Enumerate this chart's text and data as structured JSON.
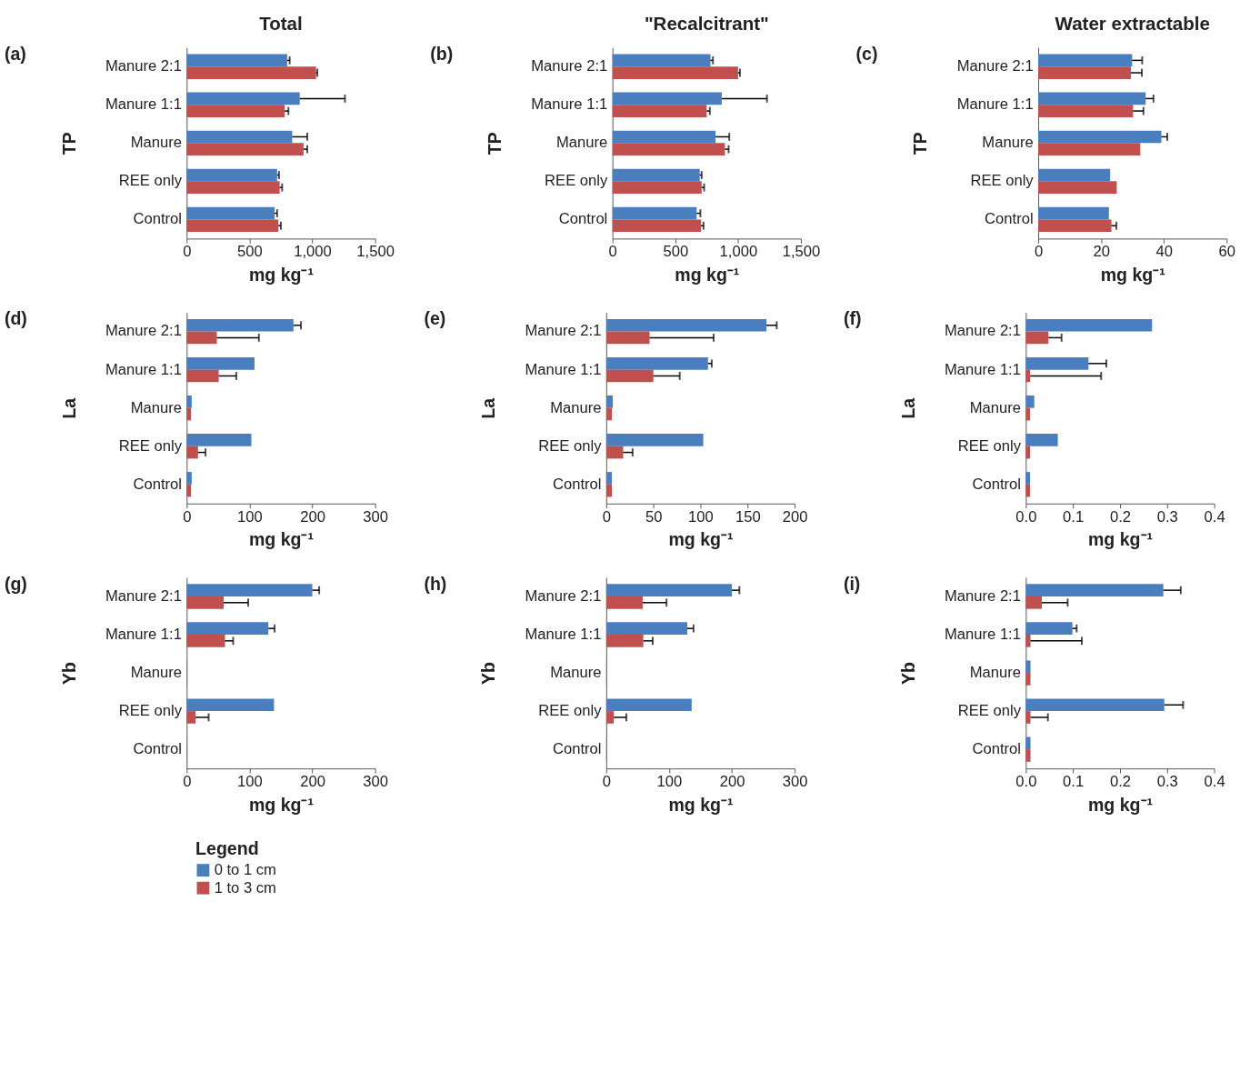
{
  "chart_data": [
    {
      "type": "bar",
      "orientation": "horizontal",
      "title": "Total",
      "ylabel": "TP",
      "xlabel": "mg kg⁻¹",
      "annotations": [
        "(a)"
      ],
      "categories": [
        "Manure 2:1",
        "Manure 1:1",
        "Manure",
        "REE only",
        "Control"
      ],
      "xlim": [
        0,
        1500
      ],
      "xticks": [
        0,
        500,
        {
          "value": 1000,
          "label": "1,000"
        },
        {
          "value": 1500,
          "label": "1,500"
        }
      ],
      "grid": false,
      "legend": "bottom",
      "legend_title": "Legend",
      "series": [
        {
          "name": "0 to 1 cm",
          "color": "#4a7ebf",
          "values": [
            800,
            900,
            840,
            720,
            700
          ],
          "errors": [
            [
              800,
              820
            ],
            [
              900,
              1260
            ],
            [
              840,
              960
            ],
            [
              720,
              735
            ],
            [
              700,
              720
            ]
          ]
        },
        {
          "name": "1 to 3 cm",
          "color": "#c0504d",
          "values": [
            1030,
            780,
            930,
            740,
            730
          ],
          "errors": [
            [
              1030,
              1040
            ],
            [
              780,
              810
            ],
            [
              930,
              960
            ],
            [
              740,
              760
            ],
            [
              730,
              750
            ]
          ]
        }
      ]
    },
    {
      "type": "bar",
      "orientation": "horizontal",
      "title": "\"Recalcitrant\"",
      "ylabel": "TP",
      "xlabel": "mg kg⁻¹",
      "annotations": [
        "(b)"
      ],
      "categories": [
        "Manure 2:1",
        "Manure 1:1",
        "Manure",
        "REE only",
        "Control"
      ],
      "xlim": [
        0,
        1500
      ],
      "xticks": [
        0,
        500,
        {
          "value": 1000,
          "label": "1,000"
        },
        {
          "value": 1500,
          "label": "1,500"
        }
      ],
      "grid": false,
      "series": [
        {
          "color": "#4a7ebf",
          "values": [
            780,
            870,
            820,
            695,
            670
          ],
          "errors": [
            [
              780,
              800
            ],
            [
              870,
              1230
            ],
            [
              820,
              930
            ],
            [
              695,
              710
            ],
            [
              670,
              700
            ]
          ]
        },
        {
          "color": "#c0504d",
          "values": [
            1000,
            750,
            895,
            710,
            705
          ],
          "errors": [
            [
              1000,
              1015
            ],
            [
              750,
              775
            ],
            [
              895,
              925
            ],
            [
              710,
              730
            ],
            [
              705,
              725
            ]
          ]
        }
      ]
    },
    {
      "type": "bar",
      "orientation": "horizontal",
      "title": "Water extractable",
      "ylabel": "TP",
      "xlabel": "mg kg⁻¹",
      "annotations": [
        "(c)"
      ],
      "categories": [
        "Manure 2:1",
        "Manure 1:1",
        "Manure",
        "REE only",
        "Control"
      ],
      "xlim": [
        0,
        60
      ],
      "xticks": [
        0,
        20,
        40,
        60
      ],
      "grid": false,
      "series": [
        {
          "color": "#4a7ebf",
          "values": [
            29.9,
            34.2,
            39.2,
            22.9,
            22.5
          ],
          "errors": [
            [
              29.9,
              33.1
            ],
            [
              34.2,
              36.7
            ],
            [
              39.2,
              41.1
            ],
            null,
            null
          ]
        },
        {
          "color": "#c0504d",
          "values": [
            29.5,
            30.2,
            32.5,
            25.0,
            23.3
          ],
          "errors": [
            [
              29.5,
              33
            ],
            [
              30.2,
              33.5
            ],
            null,
            null,
            [
              23.3,
              24.9
            ]
          ]
        }
      ]
    },
    {
      "type": "bar",
      "orientation": "horizontal",
      "ylabel": "La",
      "xlabel": "mg kg⁻¹",
      "annotations": [
        "(d)"
      ],
      "categories": [
        "Manure 2:1",
        "Manure 1:1",
        "Manure",
        "REE only",
        "Control"
      ],
      "xlim": [
        0,
        300
      ],
      "xticks": [
        0,
        100,
        200,
        300
      ],
      "grid": false,
      "series": [
        {
          "color": "#4a7ebf",
          "values": [
            170,
            108,
            8,
            103,
            8
          ],
          "errors": [
            [
              170,
              182
            ],
            null,
            null,
            null,
            null
          ]
        },
        {
          "color": "#c0504d",
          "values": [
            48,
            51,
            7,
            18,
            7
          ],
          "errors": [
            [
              48,
              115
            ],
            [
              51,
              79
            ],
            null,
            [
              18,
              30
            ],
            null
          ]
        }
      ]
    },
    {
      "type": "bar",
      "orientation": "horizontal",
      "ylabel": "La",
      "xlabel": "mg kg⁻¹",
      "annotations": [
        "(e)"
      ],
      "categories": [
        "Manure 2:1",
        "Manure 1:1",
        "Manure",
        "REE only",
        "Control"
      ],
      "xlim": [
        0,
        200
      ],
      "xticks": [
        0,
        50,
        100,
        150,
        200
      ],
      "grid": false,
      "series": [
        {
          "color": "#4a7ebf",
          "values": [
            170,
            108,
            7,
            103,
            6
          ],
          "errors": [
            [
              170,
              181
            ],
            [
              108,
              112
            ],
            null,
            null,
            null
          ]
        },
        {
          "color": "#c0504d",
          "values": [
            46,
            50,
            6,
            18,
            6
          ],
          "errors": [
            [
              46,
              114
            ],
            [
              50,
              78
            ],
            null,
            [
              18,
              28
            ],
            null
          ]
        }
      ]
    },
    {
      "type": "bar",
      "orientation": "horizontal",
      "ylabel": "La",
      "xlabel": "mg kg⁻¹",
      "annotations": [
        "(f)"
      ],
      "categories": [
        "Manure 2:1",
        "Manure 1:1",
        "Manure",
        "REE only",
        "Control"
      ],
      "xlim": [
        0,
        0.4
      ],
      "xticks": [
        {
          "value": 0,
          "label": "0.0"
        },
        0.1,
        0.2,
        0.3,
        0.4
      ],
      "grid": false,
      "series": [
        {
          "color": "#4a7ebf",
          "values": [
            0.268,
            0.133,
            0.018,
            0.068,
            0.009
          ],
          "errors": [
            null,
            [
              0.133,
              0.171
            ],
            null,
            null,
            null
          ]
        },
        {
          "color": "#c0504d",
          "values": [
            0.048,
            0.009,
            0.009,
            0.009,
            0.009
          ],
          "errors": [
            [
              0.048,
              0.076
            ],
            [
              0.009,
              0.16
            ],
            null,
            null,
            null
          ]
        }
      ]
    },
    {
      "type": "bar",
      "orientation": "horizontal",
      "ylabel": "Yb",
      "xlabel": "mg kg⁻¹",
      "annotations": [
        "(g)"
      ],
      "categories": [
        "Manure 2:1",
        "Manure 1:1",
        "Manure",
        "REE only",
        "Control"
      ],
      "xlim": [
        0,
        300
      ],
      "xticks": [
        0,
        100,
        200,
        300
      ],
      "grid": false,
      "series": [
        {
          "color": "#4a7ebf",
          "values": [
            200,
            130,
            1,
            139,
            1
          ],
          "errors": [
            [
              200,
              211
            ],
            [
              130,
              140
            ],
            null,
            null,
            null
          ]
        },
        {
          "color": "#c0504d",
          "values": [
            59,
            61,
            1,
            14,
            1
          ],
          "errors": [
            [
              59,
              98
            ],
            [
              61,
              74
            ],
            null,
            [
              14,
              35
            ],
            null
          ]
        }
      ]
    },
    {
      "type": "bar",
      "orientation": "horizontal",
      "ylabel": "Yb",
      "xlabel": "mg kg⁻¹",
      "annotations": [
        "(h)"
      ],
      "categories": [
        "Manure 2:1",
        "Manure 1:1",
        "Manure",
        "REE only",
        "Control"
      ],
      "xlim": [
        0,
        300
      ],
      "xticks": [
        0,
        100,
        200,
        300
      ],
      "grid": false,
      "series": [
        {
          "color": "#4a7ebf",
          "values": [
            200,
            129,
            1,
            136,
            1
          ],
          "errors": [
            [
              200,
              212
            ],
            [
              129,
              139
            ],
            null,
            null,
            null
          ]
        },
        {
          "color": "#c0504d",
          "values": [
            58,
            59,
            1,
            12,
            1
          ],
          "errors": [
            [
              58,
              96
            ],
            [
              59,
              74
            ],
            null,
            [
              12,
              32
            ],
            null
          ]
        }
      ]
    },
    {
      "type": "bar",
      "orientation": "horizontal",
      "ylabel": "Yb",
      "xlabel": "mg kg⁻¹",
      "annotations": [
        "(i)"
      ],
      "categories": [
        "Manure 2:1",
        "Manure 1:1",
        "Manure",
        "REE only",
        "Control"
      ],
      "xlim": [
        0,
        0.4
      ],
      "xticks": [
        {
          "value": 0,
          "label": "0.0"
        },
        0.1,
        0.2,
        0.3,
        0.4
      ],
      "grid": false,
      "series": [
        {
          "color": "#4a7ebf",
          "values": [
            0.292,
            0.099,
            0.01,
            0.294,
            0.01
          ],
          "errors": [
            [
              0.292,
              0.329
            ],
            [
              0.099,
              0.108
            ],
            null,
            [
              0.294,
              0.334
            ],
            null
          ]
        },
        {
          "color": "#c0504d",
          "values": [
            0.034,
            0.01,
            0.01,
            0.01,
            0.01
          ],
          "errors": [
            [
              0.034,
              0.089
            ],
            [
              0.01,
              0.119
            ],
            null,
            [
              0.01,
              0.047
            ],
            null
          ]
        }
      ]
    }
  ]
}
